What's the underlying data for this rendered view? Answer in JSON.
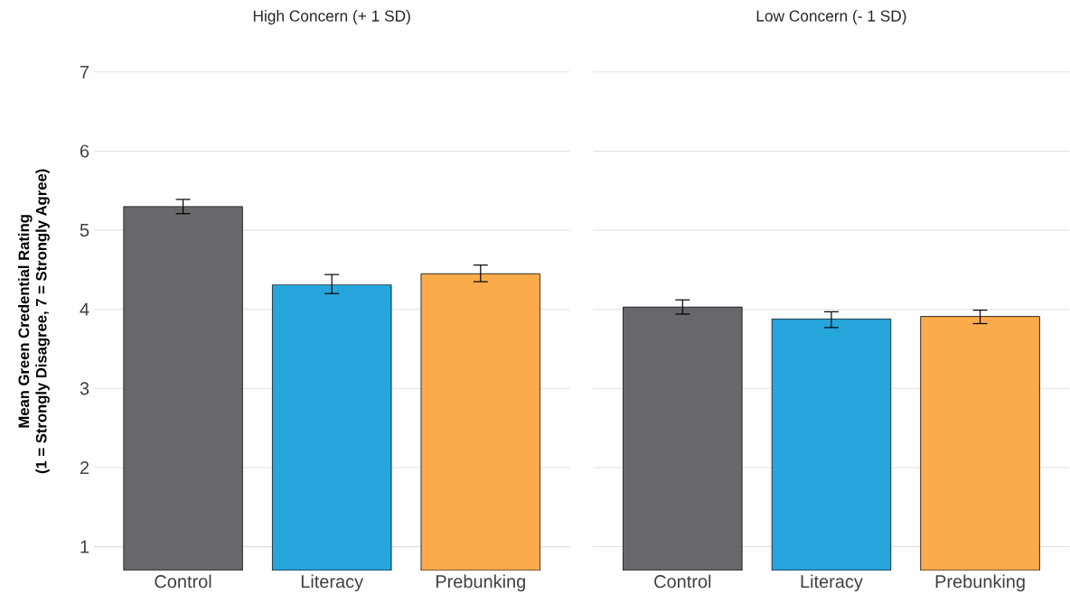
{
  "chart_data": [
    {
      "type": "bar",
      "title": "High Concern (+ 1 SD)",
      "ylabel": "Mean Green Credential Rating\n(1 = Strongly Disagree, 7 = Strongly Agree)",
      "categories": [
        "Control",
        "Literacy",
        "Prebunking"
      ],
      "values": [
        5.3,
        4.31,
        4.45
      ],
      "colors": [
        "#67686b",
        "#27a5dd",
        "#fcab4c"
      ],
      "errors": [
        [
          5.21,
          5.39
        ],
        [
          4.2,
          4.44
        ],
        [
          4.35,
          4.56
        ]
      ],
      "ylim": [
        0.7,
        7
      ],
      "yticks": [
        1,
        2,
        3,
        4,
        5,
        6,
        7
      ],
      "grid": "y"
    },
    {
      "type": "bar",
      "title": "Low Concern (- 1 SD)",
      "categories": [
        "Control",
        "Literacy",
        "Prebunking"
      ],
      "values": [
        4.03,
        3.88,
        3.91
      ],
      "colors": [
        "#67686b",
        "#27a5dd",
        "#fcab4c"
      ],
      "errors": [
        [
          3.94,
          4.12
        ],
        [
          3.77,
          3.97
        ],
        [
          3.82,
          3.99
        ]
      ],
      "ylim": [
        0.7,
        7
      ],
      "yticks": [
        1,
        2,
        3,
        4,
        5,
        6,
        7
      ],
      "grid": "y",
      "tick_labels": "x"
    }
  ]
}
